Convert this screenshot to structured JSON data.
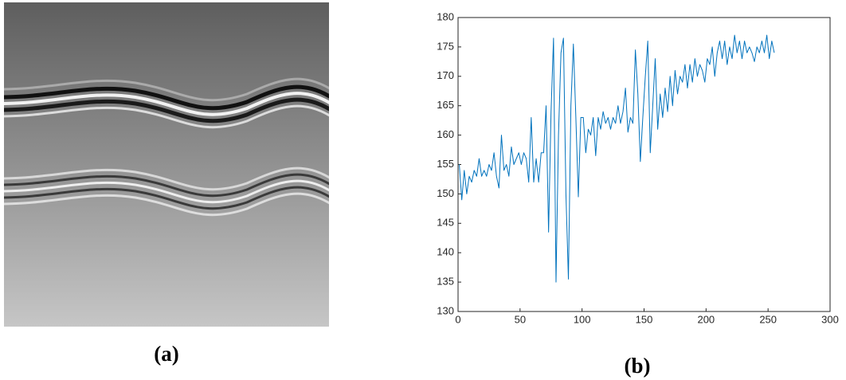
{
  "figure": {
    "labels": [
      "(a)",
      "(b)"
    ]
  },
  "chart_data": {
    "type": "line",
    "color": "#0072bd",
    "x": [
      1,
      3,
      5,
      7,
      9,
      11,
      13,
      15,
      17,
      19,
      21,
      23,
      25,
      27,
      29,
      31,
      33,
      35,
      37,
      39,
      41,
      43,
      45,
      47,
      49,
      51,
      53,
      55,
      57,
      59,
      61,
      63,
      65,
      67,
      69,
      71,
      73,
      75,
      77,
      79,
      81,
      83,
      85,
      87,
      89,
      91,
      93,
      95,
      97,
      99,
      101,
      103,
      105,
      107,
      109,
      111,
      113,
      115,
      117,
      119,
      121,
      123,
      125,
      127,
      129,
      131,
      133,
      135,
      137,
      139,
      141,
      143,
      145,
      147,
      149,
      151,
      153,
      155,
      157,
      159,
      161,
      163,
      165,
      167,
      169,
      171,
      173,
      175,
      177,
      179,
      181,
      183,
      185,
      187,
      189,
      191,
      193,
      195,
      197,
      199,
      201,
      203,
      205,
      207,
      209,
      211,
      213,
      215,
      217,
      219,
      221,
      223,
      225,
      227,
      229,
      231,
      233,
      235,
      237,
      239,
      241,
      243,
      245,
      247,
      249,
      251,
      253,
      255
    ],
    "values": [
      155,
      149,
      154,
      150,
      153,
      152,
      154,
      153,
      156,
      153,
      154,
      153,
      155,
      154,
      157,
      153,
      151,
      160,
      154,
      155,
      153,
      158,
      155,
      156,
      157,
      155,
      157,
      156,
      152,
      163,
      152,
      156,
      152,
      157,
      157,
      165,
      143.5,
      164,
      176.5,
      135,
      160,
      174,
      176.5,
      150,
      135.5,
      165,
      175.5,
      163,
      149.5,
      163,
      163,
      157,
      161,
      160,
      163,
      156.5,
      163,
      161,
      164,
      162,
      163,
      161,
      163,
      162,
      165,
      162,
      164,
      168,
      160.5,
      163,
      162,
      174.5,
      167,
      155.5,
      163,
      170,
      176,
      157,
      165,
      173,
      161,
      167,
      163,
      168,
      164,
      170,
      165,
      171,
      167,
      170,
      169,
      172,
      168,
      172,
      169,
      173,
      170,
      172,
      171,
      169,
      173,
      172,
      175,
      170,
      174,
      176,
      173,
      176,
      172,
      175,
      173,
      177,
      174,
      176,
      173,
      176,
      174,
      175,
      174,
      172.5,
      175,
      174,
      176,
      174,
      177,
      173,
      176,
      174
    ],
    "xlim": [
      0,
      300
    ],
    "xticks": [
      0,
      50,
      100,
      150,
      200,
      250,
      300
    ],
    "ylim": [
      130,
      180
    ],
    "yticks": [
      130,
      135,
      140,
      145,
      150,
      155,
      160,
      165,
      170,
      175,
      180
    ]
  }
}
